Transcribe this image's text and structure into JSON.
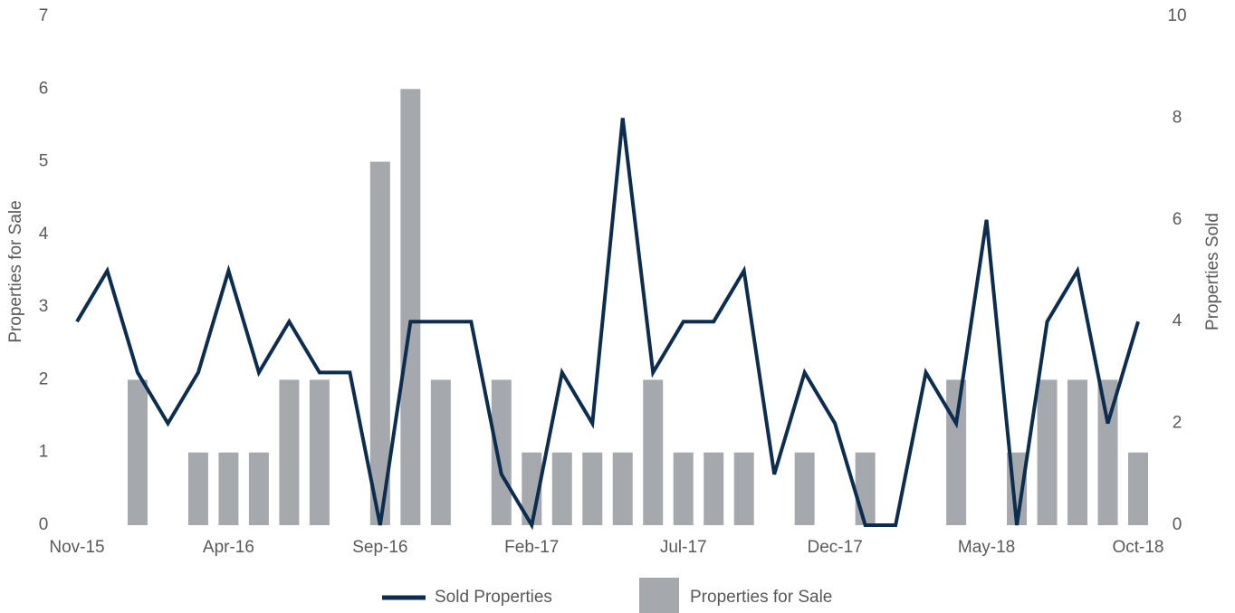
{
  "chart_data": {
    "type": "bar",
    "categories": [
      "Nov-15",
      null,
      null,
      null,
      null,
      "Apr-16",
      null,
      null,
      null,
      null,
      "Sep-16",
      null,
      null,
      null,
      null,
      "Feb-17",
      null,
      null,
      null,
      null,
      "Jul-17",
      null,
      null,
      null,
      null,
      "Dec-17",
      null,
      null,
      null,
      null,
      "May-18",
      null,
      null,
      null,
      null,
      "Oct-18"
    ],
    "series": [
      {
        "name": "Sold Properties",
        "type": "line",
        "axis": "y2",
        "color": "#0d2d4f",
        "values": [
          4,
          5,
          3,
          2,
          3,
          5,
          3,
          4,
          3,
          3,
          0,
          4,
          4,
          4,
          1,
          0,
          3,
          2,
          8,
          3,
          4,
          4,
          5,
          1,
          3,
          2,
          0,
          0,
          3,
          2,
          6,
          0,
          4,
          5,
          2,
          4
        ]
      },
      {
        "name": "Properties for Sale",
        "type": "bar",
        "color": "#a5a8ad",
        "values": [
          0,
          0,
          2,
          0,
          1,
          1,
          1,
          2,
          2,
          0,
          5,
          6,
          2,
          0,
          2,
          1,
          1,
          1,
          1,
          2,
          1,
          1,
          1,
          0,
          1,
          0,
          1,
          0,
          0,
          2,
          0,
          1,
          2,
          2,
          2,
          1
        ]
      }
    ],
    "ylabel": "Properties for Sale",
    "y2label": "Properties Sold",
    "ylim": [
      0,
      7
    ],
    "yticks": [
      0,
      1,
      2,
      3,
      4,
      5,
      6,
      7
    ],
    "y2lim": [
      0,
      10
    ],
    "y2ticks": [
      0,
      2,
      4,
      6,
      8,
      10
    ],
    "grid": false,
    "legend": "bottom"
  }
}
